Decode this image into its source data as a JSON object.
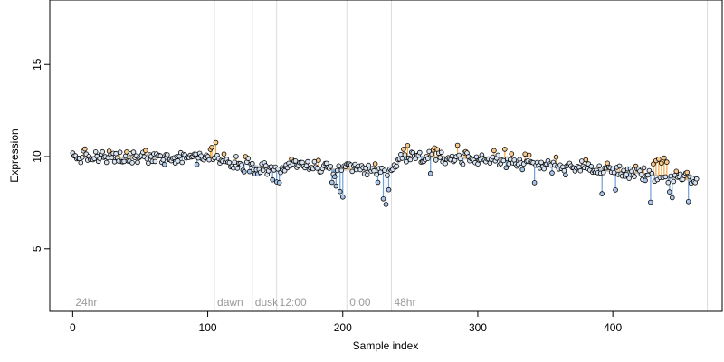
{
  "chart_data": {
    "type": "scatter",
    "xlabel": "Sample index",
    "ylabel": "Expression",
    "xlim": [
      -17,
      481
    ],
    "ylim": [
      1.6,
      18.5
    ],
    "xticks": [
      0,
      100,
      200,
      300,
      400
    ],
    "yticks": [
      5,
      10,
      15
    ],
    "grid": false,
    "colors": {
      "above": "#f5a742",
      "below": "#6f9fd8",
      "fitted": "#c9c9c9",
      "point_fill": "#d8e4f2",
      "divider": "#dcdcdc",
      "phase_text": "#9a9a9a"
    },
    "dividers": [
      {
        "x": 105,
        "label": "24hr"
      },
      {
        "x": 133,
        "label": "dawn"
      },
      {
        "x": 151,
        "label": "dusk"
      },
      {
        "x": 203,
        "label": "12:00"
      },
      {
        "x": 236,
        "label": "0:00"
      },
      {
        "x": 470,
        "label": "48hr"
      }
    ],
    "trend": [
      [
        0,
        10.0
      ],
      [
        40,
        9.9
      ],
      [
        80,
        10.0
      ],
      [
        105,
        10.0
      ],
      [
        110,
        9.8
      ],
      [
        130,
        9.6
      ],
      [
        150,
        9.2
      ],
      [
        165,
        9.6
      ],
      [
        190,
        9.3
      ],
      [
        210,
        9.3
      ],
      [
        225,
        9.2
      ],
      [
        236,
        9.2
      ],
      [
        245,
        10.0
      ],
      [
        260,
        10.0
      ],
      [
        290,
        9.9
      ],
      [
        320,
        9.8
      ],
      [
        350,
        9.5
      ],
      [
        380,
        9.4
      ],
      [
        400,
        9.2
      ],
      [
        420,
        9.1
      ],
      [
        440,
        8.9
      ],
      [
        462,
        8.7
      ]
    ],
    "events": [
      [
        52,
        0.3
      ],
      [
        54,
        0.4
      ],
      [
        56,
        -0.3
      ],
      [
        60,
        0.2
      ],
      [
        103,
        0.5
      ],
      [
        106,
        0.8
      ],
      [
        140,
        0.2
      ],
      [
        142,
        0.3
      ],
      [
        148,
        -0.5
      ],
      [
        151,
        -0.6
      ],
      [
        153,
        -0.7
      ],
      [
        182,
        0.4
      ],
      [
        192,
        -0.7
      ],
      [
        195,
        -0.9
      ],
      [
        198,
        -1.2
      ],
      [
        200,
        -1.5
      ],
      [
        205,
        0.3
      ],
      [
        224,
        0.4
      ],
      [
        226,
        -0.6
      ],
      [
        230,
        -1.5
      ],
      [
        232,
        -1.8
      ],
      [
        234,
        -1.0
      ],
      [
        245,
        0.4
      ],
      [
        248,
        0.6
      ],
      [
        265,
        -0.9
      ],
      [
        268,
        0.5
      ],
      [
        285,
        0.7
      ],
      [
        290,
        0.3
      ],
      [
        312,
        0.5
      ],
      [
        320,
        0.6
      ],
      [
        325,
        0.4
      ],
      [
        342,
        -1.0
      ],
      [
        358,
        0.5
      ],
      [
        392,
        -1.3
      ],
      [
        396,
        0.4
      ],
      [
        402,
        -1.0
      ],
      [
        428,
        -1.5
      ],
      [
        430,
        0.6
      ],
      [
        432,
        0.8
      ],
      [
        434,
        0.9
      ],
      [
        436,
        0.7
      ],
      [
        438,
        1.0
      ],
      [
        440,
        0.8
      ],
      [
        442,
        -0.8
      ],
      [
        444,
        -1.1
      ],
      [
        456,
        -1.2
      ]
    ]
  }
}
